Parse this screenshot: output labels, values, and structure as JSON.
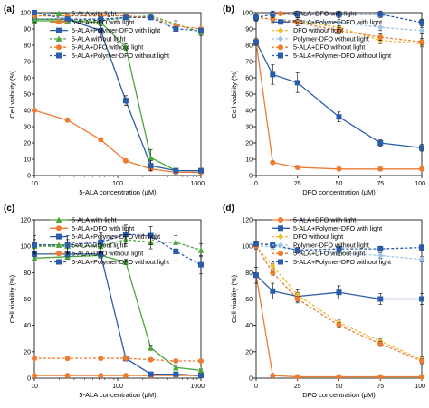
{
  "chart_data": [
    {
      "panel_label": "(a)",
      "type": "line",
      "xlabel": "5-ALA concentration (μM)",
      "ylabel": "Cell viability (%)",
      "xscale": "log",
      "xlim": [
        10,
        1000
      ],
      "ylim": [
        0,
        100
      ],
      "xticks": [
        {
          "value": 10,
          "label": "10"
        },
        {
          "value": 100,
          "label": "100"
        },
        {
          "value": 1000,
          "label": "1000"
        }
      ],
      "yticks": [
        0,
        10,
        20,
        30,
        40,
        50,
        60,
        70,
        80,
        90,
        100
      ],
      "legend_position": "top",
      "series": [
        {
          "name": "5-ALA with light",
          "color": "#4ca63c",
          "marker": "triangle",
          "dashed": false,
          "x": [
            10,
            25,
            62.5,
            125,
            250,
            500,
            1000
          ],
          "y": [
            95,
            95,
            94,
            79,
            11,
            3,
            3
          ],
          "err": [
            1,
            1,
            2,
            2,
            5,
            1,
            1
          ]
        },
        {
          "name": "5-ALA+DFO with light",
          "color": "#ee7b30",
          "marker": "circle",
          "dashed": false,
          "x": [
            10,
            25,
            62.5,
            125,
            250,
            500,
            1000
          ],
          "y": [
            40,
            34,
            22,
            9,
            4,
            2,
            2
          ],
          "err": [
            0,
            0,
            0,
            0,
            0,
            0,
            0
          ]
        },
        {
          "name": "5-ALA+Polymer-DFO with light",
          "color": "#2a5caa",
          "marker": "square",
          "dashed": false,
          "x": [
            10,
            25,
            62.5,
            125,
            250,
            500,
            1000
          ],
          "y": [
            96,
            96,
            89,
            46,
            6,
            3,
            3
          ],
          "err": [
            2,
            1,
            4,
            3,
            3,
            1,
            1
          ]
        },
        {
          "name": "5-ALA without light",
          "color": "#4ca63c",
          "marker": "triangle",
          "dashed": true,
          "x": [
            10,
            25,
            62.5,
            125,
            250,
            500,
            1000
          ],
          "y": [
            96,
            96,
            95,
            97,
            98,
            93,
            88
          ],
          "err": [
            1,
            1,
            1,
            1,
            1,
            2,
            2
          ]
        },
        {
          "name": "5-ALA+DFO without light",
          "color": "#ee7b30",
          "marker": "circle",
          "dashed": true,
          "x": [
            10,
            25,
            62.5,
            125,
            250,
            500,
            1000
          ],
          "y": [
            98,
            98,
            98,
            98,
            97,
            92,
            90
          ],
          "err": [
            1,
            1,
            1,
            1,
            1,
            1,
            1
          ]
        },
        {
          "name": "5-ALA+Polymer-DFO without light",
          "color": "#2a5caa",
          "marker": "square",
          "dashed": true,
          "x": [
            10,
            25,
            62.5,
            125,
            250,
            500,
            1000
          ],
          "y": [
            100,
            96,
            96,
            97,
            97,
            90,
            89
          ],
          "err": [
            1,
            1,
            1,
            1,
            1,
            1,
            1
          ]
        }
      ]
    },
    {
      "panel_label": "(b)",
      "type": "line",
      "xlabel": "DFO concentration (μM)",
      "ylabel": "Cell viability (%)",
      "xscale": "linear",
      "xlim": [
        0,
        100
      ],
      "ylim": [
        0,
        100
      ],
      "xticks": [
        {
          "value": 0,
          "label": "0"
        },
        {
          "value": 25,
          "label": "25"
        },
        {
          "value": 50,
          "label": "50"
        },
        {
          "value": 75,
          "label": "75"
        },
        {
          "value": 100,
          "label": "100"
        }
      ],
      "yticks": [
        0,
        10,
        20,
        30,
        40,
        50,
        60,
        70,
        80,
        90,
        100
      ],
      "legend_position": "top",
      "series": [
        {
          "name": "5-ALA+DFO with light",
          "color": "#ee7b30",
          "marker": "circle",
          "dashed": false,
          "x": [
            0,
            10,
            25,
            50,
            75,
            100
          ],
          "y": [
            82,
            8,
            5,
            4,
            4,
            4
          ],
          "err": [
            0,
            0,
            0,
            0,
            0,
            0
          ]
        },
        {
          "name": "5-ALA+Polymer-DFO with light",
          "color": "#2a5caa",
          "marker": "square",
          "dashed": false,
          "x": [
            0,
            10,
            25,
            50,
            75,
            100
          ],
          "y": [
            82,
            62,
            57,
            36,
            20,
            17
          ],
          "err": [
            2,
            6,
            6,
            3,
            2,
            2
          ]
        },
        {
          "name": "DFO without light",
          "color": "#f2b92a",
          "marker": "diamond",
          "dashed": true,
          "x": [
            0,
            10,
            25,
            50,
            75,
            100
          ],
          "y": [
            97,
            96,
            95,
            91,
            83,
            81
          ],
          "err": [
            2,
            2,
            2,
            2,
            2,
            2
          ]
        },
        {
          "name": "Polymer-DFO without light",
          "color": "#9dc3e6",
          "marker": "diamond",
          "dashed": true,
          "x": [
            0,
            10,
            25,
            50,
            75,
            100
          ],
          "y": [
            97,
            96,
            95,
            94,
            91,
            89
          ],
          "err": [
            2,
            2,
            2,
            2,
            2,
            2
          ]
        },
        {
          "name": "5-ALA+DFO without light",
          "color": "#ee7b30",
          "marker": "circle",
          "dashed": true,
          "x": [
            0,
            10,
            25,
            50,
            75,
            100
          ],
          "y": [
            97,
            96,
            94,
            89,
            85,
            82
          ],
          "err": [
            2,
            2,
            2,
            2,
            2,
            2
          ]
        },
        {
          "name": "5-ALA+Polymer-DFO without light",
          "color": "#2a5caa",
          "marker": "square",
          "dashed": true,
          "x": [
            0,
            10,
            25,
            50,
            75,
            100
          ],
          "y": [
            97,
            99,
            99,
            99,
            99,
            94
          ],
          "err": [
            2,
            2,
            2,
            2,
            2,
            2
          ]
        }
      ]
    },
    {
      "panel_label": "(c)",
      "type": "line",
      "xlabel": "5-ALA concentration (μM)",
      "ylabel": "Cell viability (%)",
      "xscale": "log",
      "xlim": [
        10,
        1000
      ],
      "ylim": [
        0,
        120
      ],
      "xticks": [
        {
          "value": 10,
          "label": "10"
        },
        {
          "value": 100,
          "label": "100"
        },
        {
          "value": 1000,
          "label": "1000"
        }
      ],
      "yticks": [
        0,
        20,
        40,
        60,
        80,
        100,
        120
      ],
      "legend_position": "top",
      "series": [
        {
          "name": "5-ALA with light",
          "color": "#4ca63c",
          "marker": "triangle",
          "dashed": false,
          "x": [
            10,
            25,
            62.5,
            125,
            250,
            500,
            1000
          ],
          "y": [
            91,
            92,
            93,
            88,
            23,
            8,
            6
          ],
          "err": [
            2,
            2,
            2,
            2,
            2,
            1,
            1
          ]
        },
        {
          "name": "5-ALA+DFO with light",
          "color": "#ee7b30",
          "marker": "circle",
          "dashed": false,
          "x": [
            10,
            25,
            62.5,
            125,
            250,
            500,
            1000
          ],
          "y": [
            2,
            2,
            2,
            2,
            2,
            2,
            2
          ],
          "err": [
            0,
            0,
            0,
            0,
            0,
            0,
            0
          ]
        },
        {
          "name": "5-ALA+Polymer-DFO with light",
          "color": "#2a5caa",
          "marker": "square",
          "dashed": false,
          "x": [
            10,
            25,
            62.5,
            125,
            250,
            500,
            1000
          ],
          "y": [
            94,
            94,
            94,
            15,
            3,
            3,
            2
          ],
          "err": [
            2,
            2,
            2,
            2,
            1,
            1,
            1
          ]
        },
        {
          "name": "5-ALA without light",
          "color": "#4ca63c",
          "marker": "triangle",
          "dashed": true,
          "x": [
            10,
            25,
            62.5,
            125,
            250,
            500,
            1000
          ],
          "y": [
            100,
            100,
            100,
            105,
            103,
            103,
            97
          ],
          "err": [
            5,
            5,
            5,
            5,
            5,
            5,
            5
          ]
        },
        {
          "name": "5-ALA+DFO without light",
          "color": "#ee7b30",
          "marker": "circle",
          "dashed": true,
          "x": [
            10,
            25,
            62.5,
            125,
            250,
            500,
            1000
          ],
          "y": [
            15,
            15,
            15,
            15,
            14,
            13,
            13
          ],
          "err": [
            1,
            1,
            1,
            1,
            1,
            1,
            1
          ]
        },
        {
          "name": "5-ALA+Polymer-DFO without light",
          "color": "#2a5caa",
          "marker": "square",
          "dashed": true,
          "x": [
            10,
            25,
            62.5,
            125,
            250,
            500,
            1000
          ],
          "y": [
            101,
            101,
            103,
            109,
            108,
            96,
            86
          ],
          "err": [
            7,
            7,
            7,
            7,
            7,
            7,
            7
          ]
        }
      ]
    },
    {
      "panel_label": "(d)",
      "type": "line",
      "xlabel": "DFO concentration (μM)",
      "ylabel": "Cell viability (%)",
      "xscale": "linear",
      "xlim": [
        0,
        100
      ],
      "ylim": [
        0,
        120
      ],
      "xticks": [
        {
          "value": 0,
          "label": "0"
        },
        {
          "value": 25,
          "label": "25"
        },
        {
          "value": 50,
          "label": "50"
        },
        {
          "value": 75,
          "label": "75"
        },
        {
          "value": 100,
          "label": "100"
        }
      ],
      "yticks": [
        0,
        20,
        40,
        60,
        80,
        100,
        120
      ],
      "legend_position": "top",
      "series": [
        {
          "name": "5-ALA+DFO with light",
          "color": "#ee7b30",
          "marker": "circle",
          "dashed": false,
          "x": [
            0,
            10,
            25,
            50,
            75,
            100
          ],
          "y": [
            78,
            2,
            1,
            1,
            1,
            1
          ],
          "err": [
            0,
            0,
            0,
            0,
            0,
            0
          ]
        },
        {
          "name": "5-ALA+Polymer-DFO with light",
          "color": "#2a5caa",
          "marker": "square",
          "dashed": false,
          "x": [
            0,
            10,
            25,
            50,
            75,
            100
          ],
          "y": [
            78,
            66,
            62,
            65,
            60,
            60
          ],
          "err": [
            6,
            6,
            5,
            5,
            4,
            4
          ]
        },
        {
          "name": "DFO without light",
          "color": "#f2b92a",
          "marker": "diamond",
          "dashed": true,
          "x": [
            0,
            10,
            25,
            50,
            75,
            100
          ],
          "y": [
            100,
            85,
            63,
            42,
            28,
            14
          ],
          "err": [
            2,
            2,
            2,
            2,
            2,
            2
          ]
        },
        {
          "name": "Polymer-DFO without light",
          "color": "#9dc3e6",
          "marker": "diamond",
          "dashed": true,
          "x": [
            0,
            10,
            25,
            50,
            75,
            100
          ],
          "y": [
            100,
            100,
            97,
            95,
            93,
            90
          ],
          "err": [
            2,
            2,
            2,
            2,
            2,
            2
          ]
        },
        {
          "name": "5-ALA+DFO without light",
          "color": "#ee7b30",
          "marker": "circle",
          "dashed": true,
          "x": [
            0,
            10,
            25,
            50,
            75,
            100
          ],
          "y": [
            100,
            80,
            60,
            40,
            26,
            13
          ],
          "err": [
            2,
            2,
            2,
            2,
            2,
            2
          ]
        },
        {
          "name": "5-ALA+Polymer-DFO without light",
          "color": "#2a5caa",
          "marker": "square",
          "dashed": true,
          "x": [
            0,
            10,
            25,
            50,
            75,
            100
          ],
          "y": [
            102,
            101,
            97,
            98,
            98,
            99
          ],
          "err": [
            2,
            2,
            2,
            2,
            2,
            2
          ]
        }
      ]
    }
  ]
}
